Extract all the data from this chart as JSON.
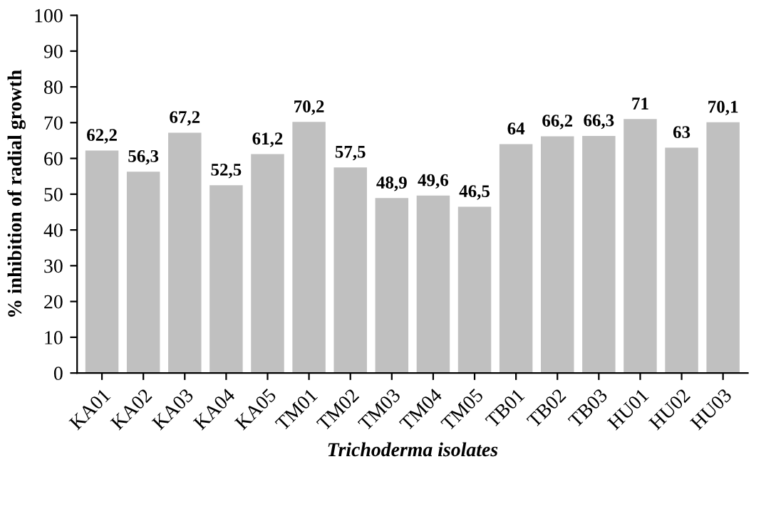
{
  "chart_data": {
    "type": "bar",
    "ylabel": "% inhibition of radial growth",
    "xlabel": "Trichoderma isolates",
    "categories": [
      "KA01",
      "KA02",
      "KA03",
      "KA04",
      "KA05",
      "TM01",
      "TM02",
      "TM03",
      "TM04",
      "TM05",
      "TB01",
      "TB02",
      "TB03",
      "HU01",
      "HU02",
      "HU03"
    ],
    "values": [
      62.2,
      56.3,
      67.2,
      52.5,
      61.2,
      70.2,
      57.5,
      48.9,
      49.6,
      46.5,
      64,
      66.2,
      66.3,
      71,
      63,
      70.1
    ],
    "value_labels": [
      "62,2",
      "56,3",
      "67,2",
      "52,5",
      "61,2",
      "70,2",
      "57,5",
      "48,9",
      "49,6",
      "46,5",
      "64",
      "66,2",
      "66,3",
      "71",
      "63",
      "70,1"
    ],
    "color": "#c0c0c0",
    "ylim": [
      0,
      100
    ],
    "yticks": [
      0,
      10,
      20,
      30,
      40,
      50,
      60,
      70,
      80,
      90,
      100
    ],
    "grid": false,
    "legend": false
  }
}
